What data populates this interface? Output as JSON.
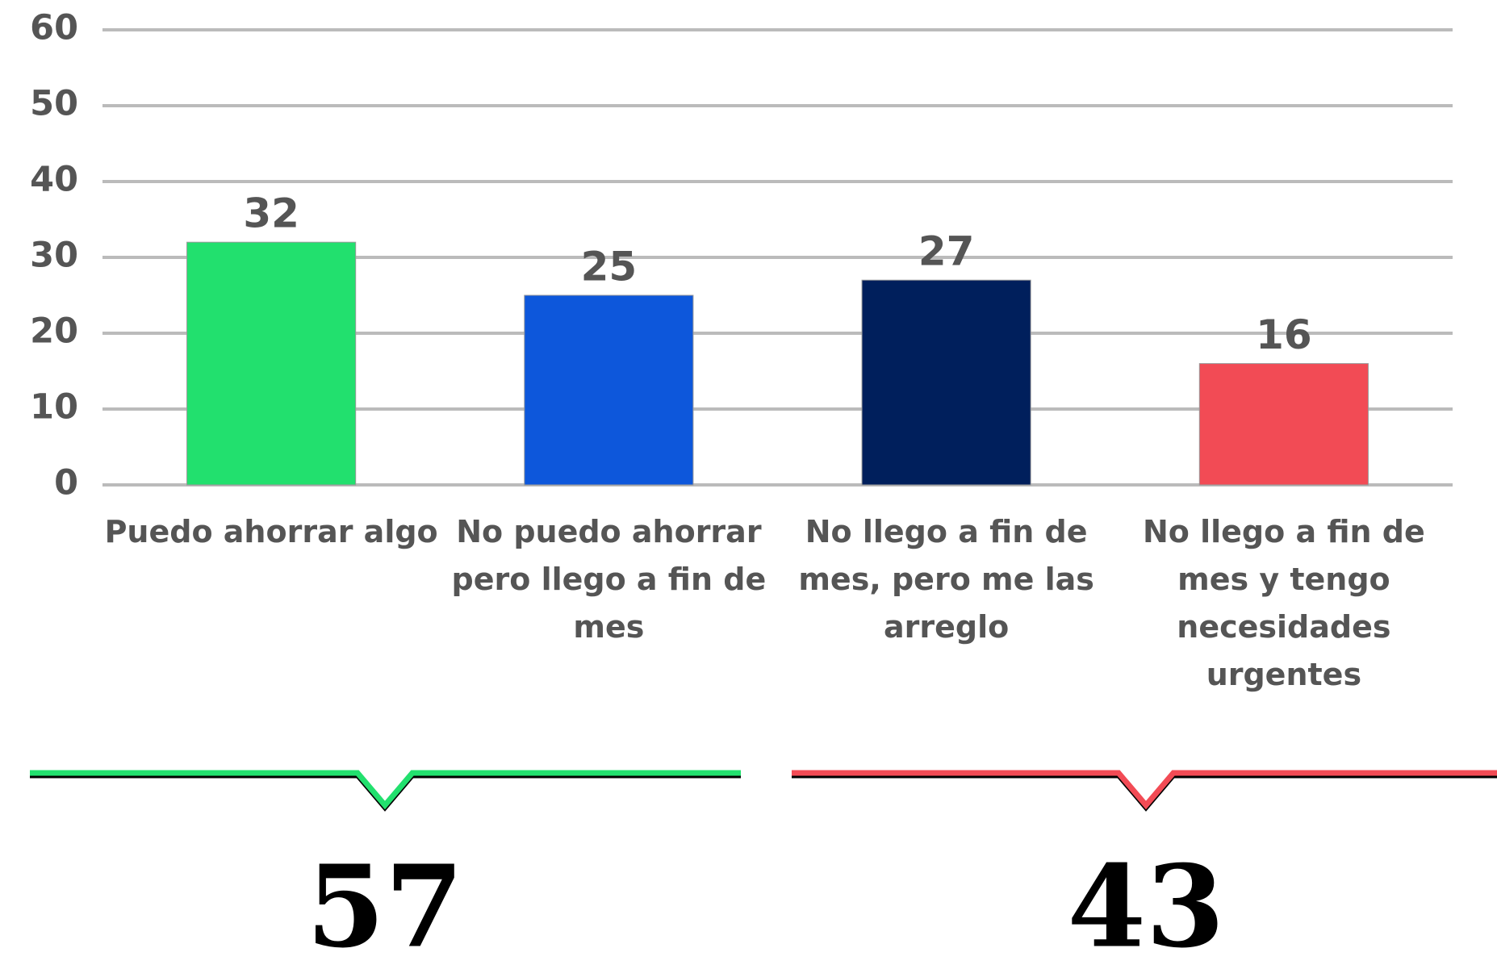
{
  "chart_data": {
    "type": "bar",
    "categories": [
      "Puedo ahorrar algo",
      "No puedo ahorrar pero llego a fin de mes",
      "No llego a fin de mes, pero me las arreglo",
      "No llego a fin de mes y tengo necesidades urgentes"
    ],
    "values": [
      32,
      25,
      27,
      16
    ],
    "colors": [
      "#22e06e",
      "#0d57db",
      "#001f5c",
      "#f24b55"
    ],
    "ylim": [
      0,
      60
    ],
    "yticks": [
      0,
      10,
      20,
      30,
      40,
      50,
      60
    ],
    "grid": true,
    "groups": [
      {
        "value": 57,
        "color": "#22e06e"
      },
      {
        "value": 43,
        "color": "#f24b55"
      }
    ]
  }
}
